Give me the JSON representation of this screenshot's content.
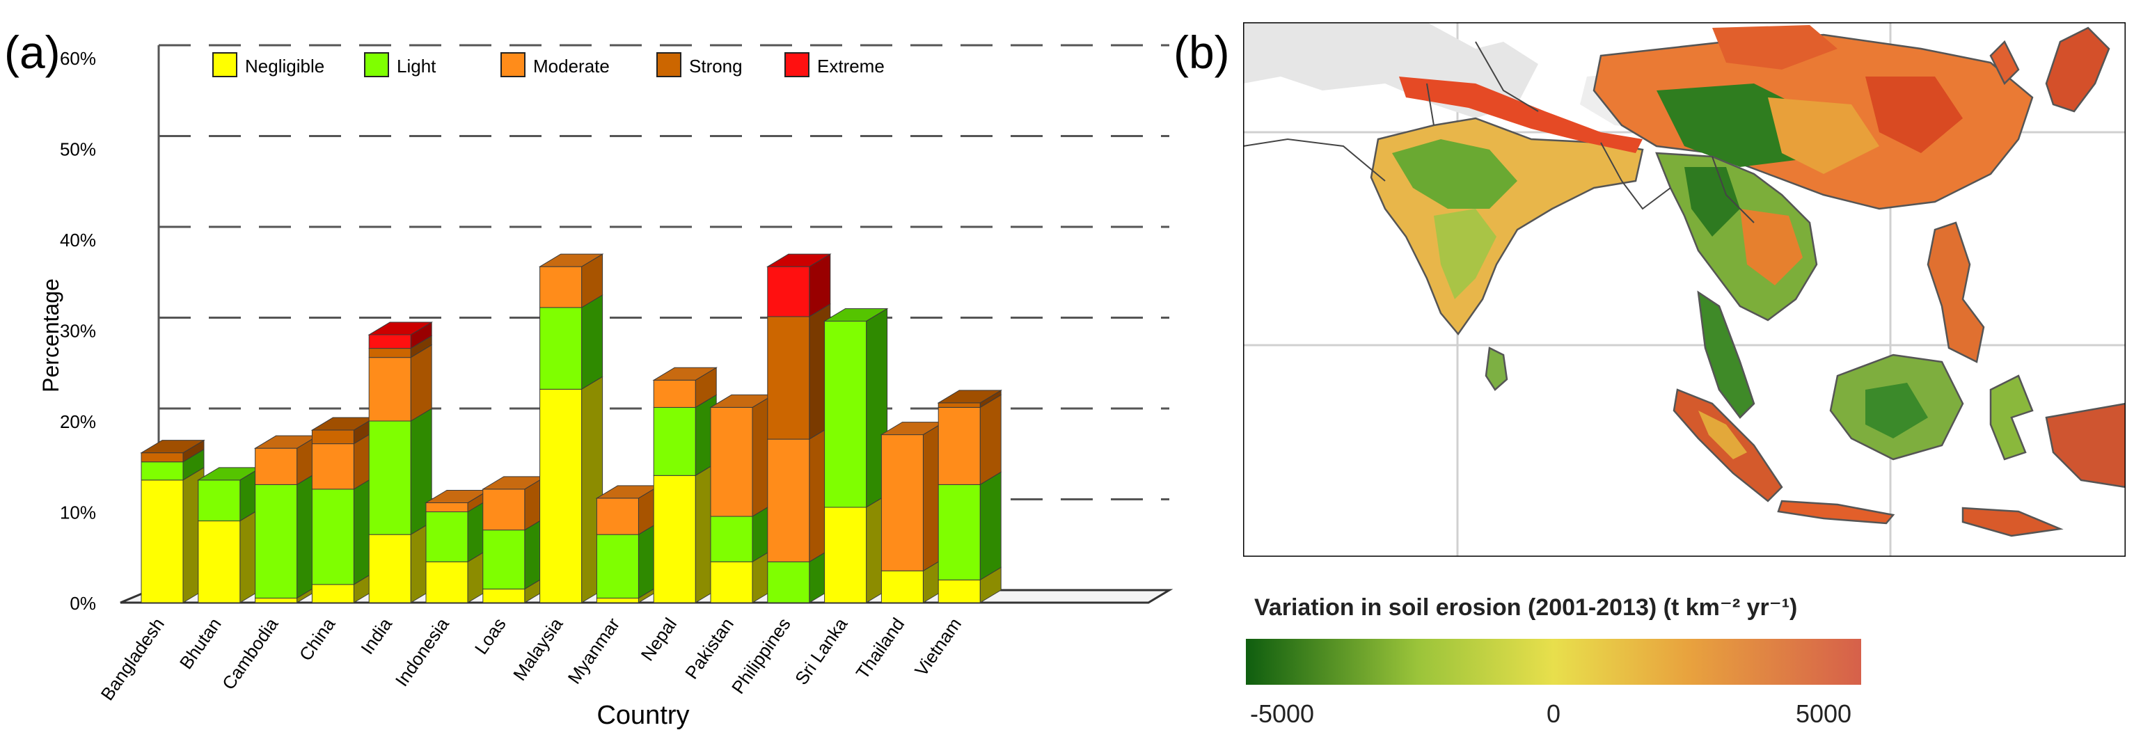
{
  "panel_a": {
    "label": "(a)",
    "chart_data": {
      "type": "bar",
      "stacked": true,
      "title": "",
      "xlabel": "Country",
      "ylabel": "Percentage",
      "ylim": [
        0,
        60
      ],
      "yticks": [
        "0%",
        "10%",
        "20%",
        "30%",
        "40%",
        "50%",
        "60%"
      ],
      "grid": true,
      "legend_position": "top-left",
      "categories": [
        "Bangladesh",
        "Bhutan",
        "Cambodia",
        "China",
        "India",
        "Indonesia",
        "Loas",
        "Malaysia",
        "Myanmar",
        "Nepal",
        "Pakistan",
        "Philippines",
        "Sri Lanka",
        "Thailand",
        "Vietnam"
      ],
      "series": [
        {
          "name": "Negligible",
          "color": "#ffff00",
          "side": "#8c8c00",
          "top": "#c9c900",
          "values": [
            13.5,
            9.0,
            0.5,
            2.0,
            7.5,
            4.5,
            1.5,
            23.5,
            0.5,
            14.0,
            4.5,
            0,
            10.5,
            3.5,
            2.5
          ]
        },
        {
          "name": "Light",
          "color": "#7fff00",
          "side": "#2f8a00",
          "top": "#55c400",
          "values": [
            2.0,
            4.5,
            12.5,
            10.5,
            12.5,
            5.5,
            6.5,
            9.0,
            7.0,
            7.5,
            5.0,
            4.5,
            20.5,
            0,
            10.5
          ]
        },
        {
          "name": "Moderate",
          "color": "#ff8c1a",
          "side": "#a85400",
          "top": "#c86a10",
          "values": [
            0,
            0,
            4.0,
            5.0,
            7.0,
            1.0,
            4.5,
            4.5,
            4.0,
            3.0,
            12.0,
            13.5,
            0,
            15.0,
            8.5
          ]
        },
        {
          "name": "Strong",
          "color": "#cc6600",
          "side": "#7a3a00",
          "top": "#a04f00",
          "values": [
            1.0,
            0,
            0,
            1.5,
            1.0,
            0,
            0,
            0,
            0,
            0,
            0,
            13.5,
            0,
            0,
            0.5
          ]
        },
        {
          "name": "Extreme",
          "color": "#ff1010",
          "side": "#990000",
          "top": "#cc0000",
          "values": [
            0,
            0,
            0,
            0,
            1.5,
            0,
            0,
            0,
            0,
            0,
            0,
            5.5,
            0,
            0,
            0
          ]
        }
      ]
    }
  },
  "panel_b": {
    "label": "(b)",
    "colorbar": {
      "title": "Variation in soil erosion (2001-2013) (t km⁻² yr⁻¹)",
      "min_label": "-5000",
      "mid_label": "0",
      "max_label": "5000",
      "colors": [
        "#0f5e0f",
        "#9bc43a",
        "#e8df4c",
        "#e8a23e",
        "#d6604a"
      ]
    }
  }
}
